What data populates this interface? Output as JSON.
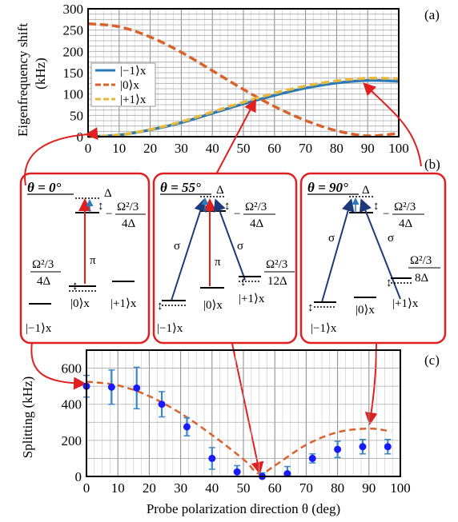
{
  "chart_data": [
    {
      "type": "line",
      "panel_label": "(a)",
      "ylabel_line1": "Eigenfrequency shift",
      "ylabel_line2": "(kHz)",
      "xlim": [
        0,
        100
      ],
      "ylim": [
        0,
        300
      ],
      "xticks": [
        "0",
        "10",
        "20",
        "30",
        "40",
        "50",
        "60",
        "70",
        "80",
        "90",
        "100"
      ],
      "yticks": [
        "0",
        "50",
        "100",
        "150",
        "200",
        "250",
        "300"
      ],
      "grid": true,
      "legend_position": "center-left",
      "series": [
        {
          "name": "|−1⟩x",
          "style": "solid",
          "color": "#2b7bba",
          "x": [
            0,
            10,
            20,
            30,
            40,
            50,
            60,
            70,
            80,
            90,
            100
          ],
          "y": [
            0,
            4,
            16,
            33,
            55,
            77,
            97,
            114,
            126,
            132,
            130
          ]
        },
        {
          "name": "|0⟩x",
          "style": "dashed",
          "color": "#d9622b",
          "x": [
            0,
            10,
            20,
            30,
            40,
            50,
            60,
            70,
            80,
            90,
            100
          ],
          "y": [
            265,
            258,
            234,
            198,
            155,
            111,
            71,
            38,
            14,
            2,
            8
          ]
        },
        {
          "name": "|+1⟩x",
          "style": "dashed",
          "color": "#e8b93f",
          "x": [
            0,
            10,
            20,
            30,
            40,
            50,
            60,
            70,
            80,
            90,
            100
          ],
          "y": [
            0,
            4,
            17,
            35,
            58,
            81,
            102,
            119,
            131,
            137,
            136
          ]
        }
      ]
    },
    {
      "type": "scatter",
      "panel_label": "(c)",
      "xlabel": "Probe polarization direction θ (deg)",
      "ylabel": "Splitting (kHz)",
      "xlim": [
        0,
        100
      ],
      "ylim": [
        0,
        700
      ],
      "xticks": [
        "0",
        "10",
        "20",
        "30",
        "40",
        "50",
        "60",
        "70",
        "80",
        "90",
        "100"
      ],
      "yticks": [
        "0",
        "200",
        "400",
        "600"
      ],
      "grid": true,
      "points": [
        {
          "x": 0,
          "y": 500,
          "err": 60
        },
        {
          "x": 8,
          "y": 495,
          "err": 95
        },
        {
          "x": 16,
          "y": 490,
          "err": 115
        },
        {
          "x": 24,
          "y": 400,
          "err": 70
        },
        {
          "x": 32,
          "y": 275,
          "err": 50
        },
        {
          "x": 40,
          "y": 100,
          "err": 60
        },
        {
          "x": 48,
          "y": 25,
          "err": 35
        },
        {
          "x": 56,
          "y": 0,
          "err": 20
        },
        {
          "x": 64,
          "y": 15,
          "err": 40
        },
        {
          "x": 72,
          "y": 100,
          "err": 25
        },
        {
          "x": 80,
          "y": 150,
          "err": 45
        },
        {
          "x": 88,
          "y": 165,
          "err": 40
        },
        {
          "x": 96,
          "y": 165,
          "err": 40
        }
      ],
      "fit": {
        "style": "dashed",
        "color": "#d9622b",
        "x": [
          0,
          10,
          20,
          30,
          40,
          50,
          55,
          60,
          70,
          80,
          90,
          97
        ],
        "y": [
          525,
          505,
          445,
          350,
          230,
          95,
          15,
          60,
          175,
          245,
          265,
          250
        ]
      }
    }
  ],
  "panel_b": {
    "panel_label": "(b)",
    "boxes": [
      {
        "angle": "θ = 0°",
        "delta": "Δ",
        "shift_top": "Ω²/3",
        "shift_top_den": "4Δ",
        "shift_low": "Ω²/3",
        "shift_low_den": "4Δ",
        "pi": "π",
        "ket_m1": "|−1⟩x",
        "ket_0": "|0⟩x",
        "ket_p1": "|+1⟩x"
      },
      {
        "angle": "θ = 55°",
        "delta": "Δ",
        "shift_top": "Ω²/3",
        "shift_top_den": "4Δ",
        "shift_low": "Ω²/3",
        "shift_low_den": "12Δ",
        "pi": "π",
        "sigma": "σ",
        "ket_m1": "|−1⟩x",
        "ket_0": "|0⟩x",
        "ket_p1": "|+1⟩x"
      },
      {
        "angle": "θ = 90°",
        "delta": "Δ",
        "shift_top": "Ω²/3",
        "shift_top_den": "4Δ",
        "shift_low": "Ω²/3",
        "shift_low_den": "8Δ",
        "sigma": "σ",
        "ket_m1": "|−1⟩x",
        "ket_0": "|0⟩x",
        "ket_p1": "|+1⟩x"
      }
    ]
  },
  "colors": {
    "blue": "#2b7bba",
    "orange": "#d9622b",
    "yellow": "#e8b93f",
    "red": "#e02020",
    "navy": "#1f3a7a",
    "green": "#21a366",
    "point": "#1a1aff",
    "err": "#3a87c8"
  }
}
